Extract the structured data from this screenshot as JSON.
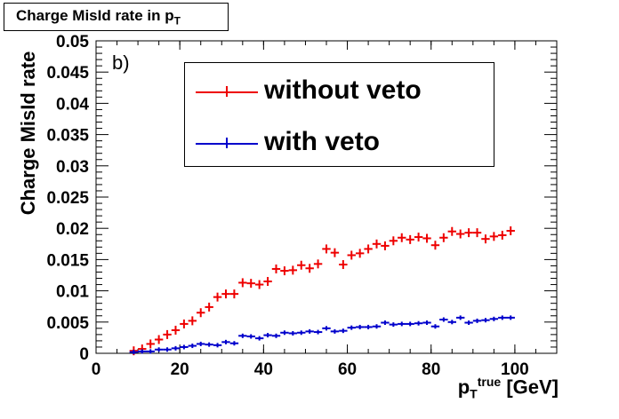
{
  "chart_data": {
    "type": "scatter",
    "title": "Charge MisId rate in p_T",
    "title_main": "Charge MisId rate in p",
    "title_sub": "T",
    "panel_label": "b)",
    "xlabel_main": "p",
    "xlabel_sup": "true",
    "xlabel_sub": "T",
    "xlabel_unit": "[GeV]",
    "ylabel": "Charge MisId rate",
    "xlim": [
      0,
      110
    ],
    "ylim": [
      0,
      0.05
    ],
    "xticks": [
      0,
      20,
      40,
      60,
      80,
      100
    ],
    "yticks": [
      0,
      0.005,
      0.01,
      0.015,
      0.02,
      0.025,
      0.03,
      0.035,
      0.04,
      0.045,
      0.05
    ],
    "ytick_labels": [
      "0",
      "0.005",
      "0.01",
      "0.015",
      "0.02",
      "0.025",
      "0.03",
      "0.035",
      "0.04",
      "0.045",
      "0.05"
    ],
    "xtick_labels": [
      "0",
      "20",
      "40",
      "60",
      "80",
      "100"
    ],
    "grid": false,
    "legend_position": "top-right",
    "bin_width": 2,
    "series": [
      {
        "name": "without veto",
        "color": "#ee0000",
        "x": [
          9,
          11,
          13,
          15,
          17,
          19,
          21,
          23,
          25,
          27,
          29,
          31,
          33,
          35,
          37,
          39,
          41,
          43,
          45,
          47,
          49,
          51,
          53,
          55,
          57,
          59,
          61,
          63,
          65,
          67,
          69,
          71,
          73,
          75,
          77,
          79,
          81,
          83,
          85,
          87,
          89,
          91,
          93,
          95,
          97,
          99
        ],
        "y": [
          0.0004,
          0.0007,
          0.0015,
          0.0022,
          0.003,
          0.0037,
          0.0047,
          0.0052,
          0.0065,
          0.0074,
          0.009,
          0.0095,
          0.0095,
          0.0113,
          0.0112,
          0.011,
          0.0115,
          0.0135,
          0.0132,
          0.0133,
          0.0141,
          0.0136,
          0.0143,
          0.0167,
          0.0161,
          0.0142,
          0.0157,
          0.016,
          0.0167,
          0.0175,
          0.0172,
          0.018,
          0.0185,
          0.0182,
          0.0186,
          0.0184,
          0.0173,
          0.0185,
          0.0195,
          0.0191,
          0.0193,
          0.0193,
          0.0183,
          0.0187,
          0.0189,
          0.0196
        ]
      },
      {
        "name": "with veto",
        "color": "#0000cc",
        "x": [
          9,
          11,
          13,
          15,
          17,
          19,
          21,
          23,
          25,
          27,
          29,
          31,
          33,
          35,
          37,
          39,
          41,
          43,
          45,
          47,
          49,
          51,
          53,
          55,
          57,
          59,
          61,
          63,
          65,
          67,
          69,
          71,
          73,
          75,
          77,
          79,
          81,
          83,
          85,
          87,
          89,
          91,
          93,
          95,
          97,
          99
        ],
        "y": [
          0.0002,
          0.0003,
          0.0003,
          0.0006,
          0.0006,
          0.0008,
          0.001,
          0.0012,
          0.0015,
          0.0014,
          0.0013,
          0.0018,
          0.0016,
          0.0028,
          0.0027,
          0.0024,
          0.0029,
          0.0028,
          0.0033,
          0.0032,
          0.0033,
          0.0035,
          0.0034,
          0.004,
          0.0035,
          0.0036,
          0.0041,
          0.0042,
          0.0042,
          0.0043,
          0.0049,
          0.0046,
          0.0047,
          0.0047,
          0.0048,
          0.0049,
          0.0043,
          0.0054,
          0.005,
          0.0057,
          0.0049,
          0.0052,
          0.0053,
          0.0055,
          0.0057,
          0.0057
        ]
      }
    ]
  }
}
